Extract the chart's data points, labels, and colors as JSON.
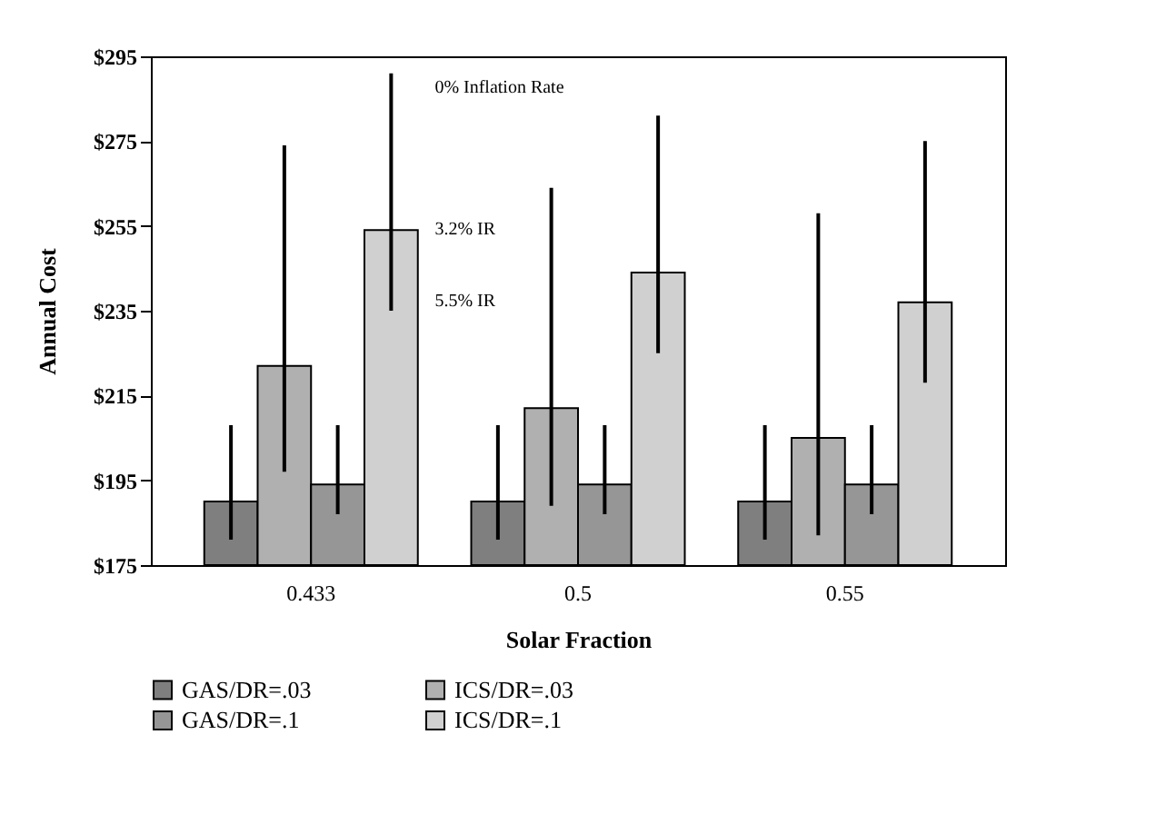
{
  "chart_data": {
    "type": "bar",
    "xlabel": "Solar Fraction",
    "ylabel": "Annual Cost",
    "categories": [
      "0.433",
      "0.5",
      "0.55"
    ],
    "series": [
      {
        "name": "GAS/DR=.03",
        "color": "#7f7f7f",
        "values": [
          190,
          190,
          190
        ],
        "errors": [
          [
            181,
            208
          ],
          [
            181,
            208
          ],
          [
            181,
            208
          ]
        ]
      },
      {
        "name": "ICS/DR=.03",
        "color": "#b0b0b0",
        "values": [
          222,
          212,
          205
        ],
        "errors": [
          [
            197,
            274
          ],
          [
            189,
            264
          ],
          [
            182,
            258
          ]
        ]
      },
      {
        "name": "GAS/DR=.1",
        "color": "#969696",
        "values": [
          194,
          194,
          194
        ],
        "errors": [
          [
            187,
            208
          ],
          [
            187,
            208
          ],
          [
            187,
            208
          ]
        ]
      },
      {
        "name": "ICS/DR=.1",
        "color": "#d0d0d0",
        "values": [
          254,
          244,
          237
        ],
        "errors": [
          [
            235,
            291
          ],
          [
            225,
            281
          ],
          [
            218,
            275
          ]
        ]
      }
    ],
    "ylim": [
      175,
      295
    ],
    "yticks": [
      {
        "value": 175,
        "label": "$175"
      },
      {
        "value": 195,
        "label": "$195"
      },
      {
        "value": 215,
        "label": "$215"
      },
      {
        "value": 235,
        "label": "$235"
      },
      {
        "value": 255,
        "label": "$255"
      },
      {
        "value": 275,
        "label": "$275"
      },
      {
        "value": 295,
        "label": "$295"
      }
    ],
    "annotations": [
      "0% Inflation Rate",
      "3.2% IR",
      "5.5% IR"
    ],
    "grid": false,
    "legend": "bottom"
  }
}
